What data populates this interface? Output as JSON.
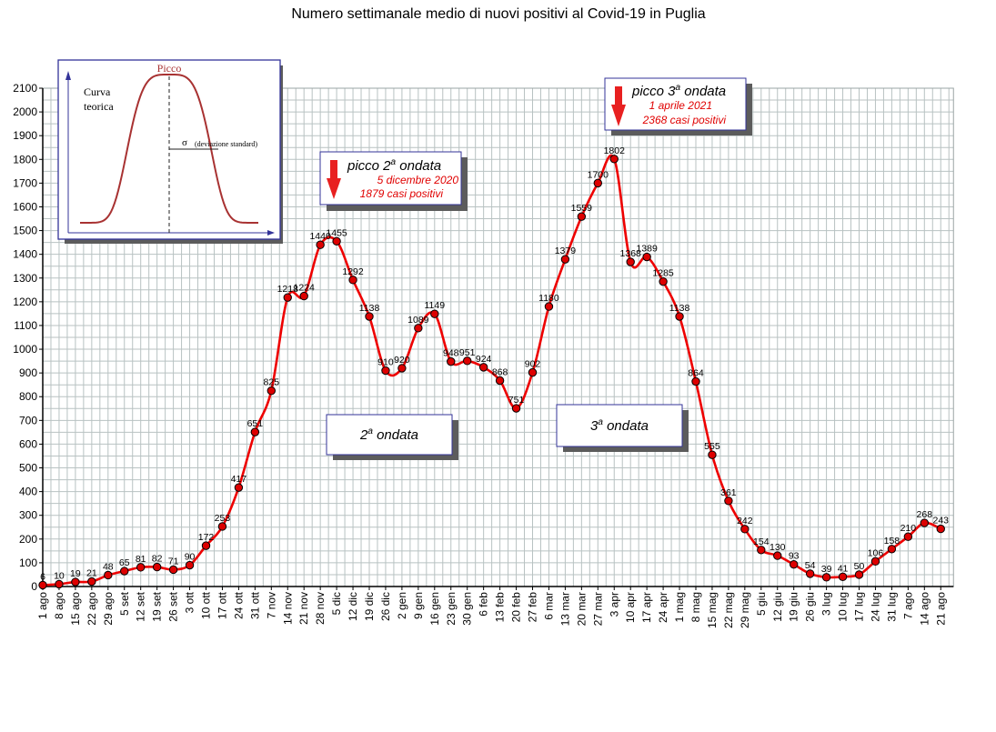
{
  "chart_data": {
    "type": "line",
    "title": "Numero settimanale medio di nuovi positivi al Covid-19 in Puglia",
    "xlabel": "",
    "ylabel": "",
    "ylim": [
      0,
      2100
    ],
    "yticks": [
      0,
      100,
      200,
      300,
      400,
      500,
      600,
      700,
      800,
      900,
      1000,
      1100,
      1200,
      1300,
      1400,
      1500,
      1600,
      1700,
      1800,
      1900,
      2000,
      2100
    ],
    "grid": true,
    "categories": [
      "1 ago",
      "8 ago",
      "15 ago",
      "22 ago",
      "29 ago",
      "5 set",
      "12 set",
      "19 set",
      "26 set",
      "3 ott",
      "10 ott",
      "17 ott",
      "24 ott",
      "31 ott",
      "7 nov",
      "14 nov",
      "21 nov",
      "28 nov",
      "5 dic",
      "12 dic",
      "19 dic",
      "26 dic",
      "2 gen",
      "9 gen",
      "16 gen",
      "23 gen",
      "30 gen",
      "6 feb",
      "13 feb",
      "20 feb",
      "27 feb",
      "6 mar",
      "13 mar",
      "20 mar",
      "27 mar",
      "3 apr",
      "10 apr",
      "17 apr",
      "24 apr",
      "1 mag",
      "8 mag",
      "15 mag",
      "22 mag",
      "29 mag",
      "5 giu",
      "12 giu",
      "19 giu",
      "26 giu",
      "3 lug",
      "10 lug",
      "17 lug",
      "24 lug",
      "31 lug",
      "7 ago",
      "14 ago",
      "21 ago"
    ],
    "series": [
      {
        "values": [
          6,
          10,
          19,
          21,
          48,
          65,
          81,
          82,
          71,
          90,
          172,
          253,
          417,
          651,
          825,
          1218,
          1224,
          1440,
          1455,
          1292,
          1138,
          910,
          920,
          1089,
          1149,
          948,
          951,
          924,
          868,
          751,
          902,
          1180,
          1379,
          1559,
          1700,
          1802,
          1368,
          1389,
          1285,
          1138,
          864,
          555,
          361,
          242,
          154,
          130,
          93,
          54,
          39,
          41,
          50,
          106,
          158,
          210,
          268,
          243
        ],
        "color": "#ee0000",
        "marker_color": "#dd0000"
      }
    ],
    "labels": [
      "6",
      "10",
      "19",
      "21",
      "48",
      "65",
      "81",
      "82",
      "71",
      "90",
      "172",
      "253",
      "417",
      "651",
      "825",
      "1218",
      "1224",
      "1440",
      "1455",
      "1292",
      "1138",
      "910",
      "920",
      "1089",
      "1149",
      "948",
      "951",
      "924",
      "868",
      "751",
      "902",
      "1180",
      "1379",
      "1559",
      "1700",
      "1802",
      "1368",
      "1389",
      "1285",
      "1138",
      "864",
      "555",
      "361",
      "242",
      "154",
      "130",
      "93",
      "54",
      "39",
      "41",
      "50",
      "106",
      "158",
      "210",
      "268",
      "243"
    ],
    "annotations": {
      "peak2": {
        "title_main": "picco 2",
        "title_sup": "a",
        "title_rest": " ondata",
        "date": "5 dicembre 2020",
        "cases": "1879 casi positivi"
      },
      "peak3": {
        "title_main": "picco 3",
        "title_sup": "a",
        "title_rest": " ondata",
        "date": "1 aprile 2021",
        "cases": "2368 casi positivi"
      },
      "wave2": {
        "num": "2",
        "sup": "a",
        "rest": " ondata"
      },
      "wave3": {
        "num": "3",
        "sup": "a",
        "rest": " ondata"
      }
    },
    "inset": {
      "peak_label": "Picco",
      "curve_label_1": "Curva",
      "curve_label_2": "teorica",
      "sigma": "σ",
      "sigma_label": "(deviazione standard)"
    }
  }
}
